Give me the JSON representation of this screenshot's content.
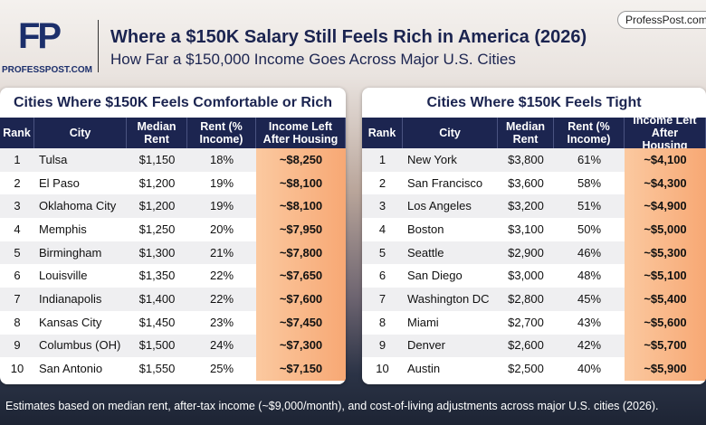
{
  "header": {
    "logo": "FP",
    "logo_caption": "PROFESSPOST.COM",
    "title": "Where a $150K Salary Still Feels Rich in America (2026)",
    "subtitle": "How Far a $150,000 Income Goes Across Major U.S. Cities",
    "badge": "ProfessPost.com"
  },
  "tables": [
    {
      "title": "Cities Where $150K Feels Comfortable or Rich",
      "columns": [
        "Rank",
        "City",
        "Median Rent",
        "Rent (% Income)",
        "Income Left After Housing"
      ],
      "rows": [
        [
          "1",
          "Tulsa",
          "$1,150",
          "18%",
          "~$8,250"
        ],
        [
          "2",
          "El Paso",
          "$1,200",
          "19%",
          "~$8,100"
        ],
        [
          "3",
          "Oklahoma City",
          "$1,200",
          "19%",
          "~$8,100"
        ],
        [
          "4",
          "Memphis",
          "$1,250",
          "20%",
          "~$7,950"
        ],
        [
          "5",
          "Birmingham",
          "$1,300",
          "21%",
          "~$7,800"
        ],
        [
          "6",
          "Louisville",
          "$1,350",
          "22%",
          "~$7,650"
        ],
        [
          "7",
          "Indianapolis",
          "$1,400",
          "22%",
          "~$7,600"
        ],
        [
          "8",
          "Kansas City",
          "$1,450",
          "23%",
          "~$7,450"
        ],
        [
          "9",
          "Columbus (OH)",
          "$1,500",
          "24%",
          "~$7,300"
        ],
        [
          "10",
          "San Antonio",
          "$1,550",
          "25%",
          "~$7,150"
        ]
      ]
    },
    {
      "title": "Cities Where $150K Feels Tight",
      "columns": [
        "Rank",
        "City",
        "Median Rent",
        "Rent (% Income)",
        "Income Left After Housing"
      ],
      "rows": [
        [
          "1",
          "New York",
          "$3,800",
          "61%",
          "~$4,100"
        ],
        [
          "2",
          "San Francisco",
          "$3,600",
          "58%",
          "~$4,300"
        ],
        [
          "3",
          "Los Angeles",
          "$3,200",
          "51%",
          "~$4,900"
        ],
        [
          "4",
          "Boston",
          "$3,100",
          "50%",
          "~$5,000"
        ],
        [
          "5",
          "Seattle",
          "$2,900",
          "46%",
          "~$5,300"
        ],
        [
          "6",
          "San Diego",
          "$3,000",
          "48%",
          "~$5,100"
        ],
        [
          "7",
          "Washington DC",
          "$2,800",
          "45%",
          "~$5,400"
        ],
        [
          "8",
          "Miami",
          "$2,700",
          "43%",
          "~$5,600"
        ],
        [
          "9",
          "Denver",
          "$2,600",
          "42%",
          "~$5,700"
        ],
        [
          "10",
          "Austin",
          "$2,500",
          "40%",
          "~$5,900"
        ]
      ]
    }
  ],
  "footer": "Estimates based on median rent, after-tax income (~$9,000/month), and cost-of-living adjustments across major U.S. cities (2026)."
}
